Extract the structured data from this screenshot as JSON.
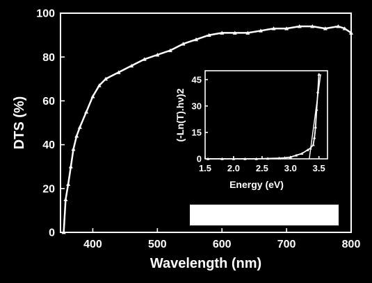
{
  "chart_data": [
    {
      "type": "line",
      "title": "",
      "xlabel": "Wavelength (nm)",
      "ylabel": "DTS (%)",
      "xlim": [
        350,
        800
      ],
      "ylim": [
        0,
        100
      ],
      "xticks": [
        "400",
        "500",
        "600",
        "700",
        "800"
      ],
      "yticks": [
        "0",
        "20",
        "40",
        "60",
        "80",
        "100"
      ],
      "grid": false,
      "series": [
        {
          "line_color": "#ffffff",
          "marker": "triangle",
          "x": [
            355,
            358,
            362,
            366,
            370,
            375,
            380,
            390,
            400,
            410,
            420,
            440,
            460,
            480,
            500,
            520,
            540,
            560,
            580,
            600,
            620,
            640,
            660,
            680,
            700,
            720,
            740,
            760,
            780,
            790,
            800
          ],
          "y": [
            0,
            15,
            22,
            30,
            38,
            44,
            48,
            55,
            62,
            67,
            70,
            73,
            76,
            79,
            81,
            83,
            86,
            88,
            90,
            91,
            91,
            91,
            92,
            93,
            93,
            94,
            94,
            93,
            94,
            93,
            91
          ]
        }
      ]
    },
    {
      "type": "line",
      "title": "",
      "xlabel": "Energy (eV)",
      "ylabel": "(-Ln(T).hν)2",
      "xlim": [
        1.5,
        3.65
      ],
      "ylim": [
        0,
        50
      ],
      "xticks": [
        "1.5",
        "2.0",
        "2.5",
        "3.0",
        "3.5"
      ],
      "yticks": [
        "0",
        "15",
        "30",
        "45"
      ],
      "grid": false,
      "series": [
        {
          "line_color": "#ffffff",
          "marker": "triangle",
          "x": [
            1.55,
            1.8,
            2.0,
            2.2,
            2.4,
            2.6,
            2.8,
            2.9,
            3.0,
            3.1,
            3.2,
            3.3,
            3.35,
            3.4,
            3.42,
            3.44,
            3.46,
            3.48,
            3.5
          ],
          "y": [
            0,
            0,
            0,
            0,
            0,
            0.2,
            0.4,
            0.6,
            1,
            2,
            3,
            5,
            6,
            8,
            12,
            18,
            28,
            38,
            48
          ]
        }
      ],
      "fit_line": {
        "x": [
          3.33,
          3.53
        ],
        "y": [
          0,
          48
        ]
      }
    }
  ],
  "overlay": {
    "bar_color": "#ffffff"
  }
}
